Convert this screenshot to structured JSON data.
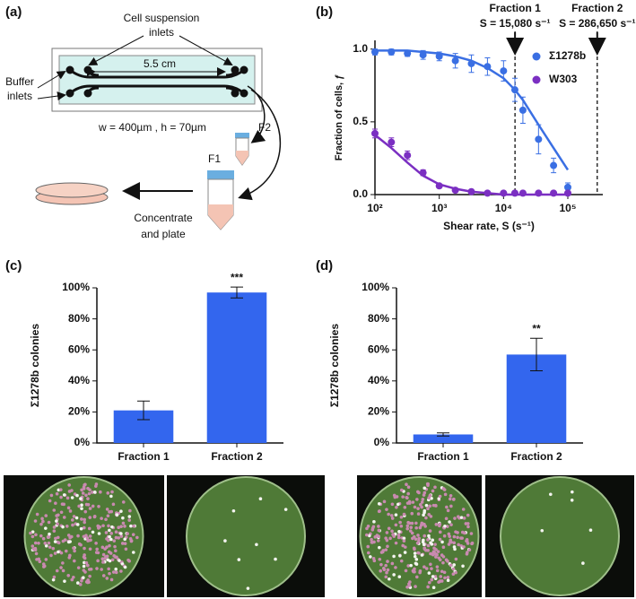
{
  "panel_labels": [
    "(a)",
    "(b)",
    "(c)",
    "(d)"
  ],
  "diagram": {
    "cell_inlets": [
      "Cell suspension",
      "inlets"
    ],
    "buffer_inlets": [
      "Buffer",
      "inlets"
    ],
    "length": "5.5 cm",
    "dimensions": "w = 400µm , h = 70µm",
    "f2": "F2",
    "f1": "F1",
    "plate_step": [
      "Concentrate",
      "and plate"
    ]
  },
  "chart_data": [
    {
      "type": "scatter",
      "xlabel": "Shear rate, S (s⁻¹)",
      "ylabel": "Fraction of cells, ƒ",
      "log_x": true,
      "xlim": [
        100,
        350000
      ],
      "ylim": [
        0,
        1.06
      ],
      "xticks": [
        {
          "value": 100,
          "label": "10²"
        },
        {
          "value": 1000,
          "label": "10³"
        },
        {
          "value": 10000,
          "label": "10⁴"
        },
        {
          "value": 100000,
          "label": "10⁵"
        }
      ],
      "yticks": [
        {
          "value": 0,
          "label": "0.0"
        },
        {
          "value": 0.5,
          "label": "0.5"
        },
        {
          "value": 1,
          "label": "1.0"
        }
      ],
      "x": [
        100,
        180,
        320,
        560,
        1000,
        1780,
        3160,
        5620,
        10000,
        15000,
        20000,
        35000,
        60000,
        100000
      ],
      "series": [
        {
          "name": "Σ1278b",
          "color": "#3a6fe3",
          "values": [
            0.98,
            0.98,
            0.97,
            0.96,
            0.95,
            0.92,
            0.9,
            0.88,
            0.85,
            0.72,
            0.58,
            0.38,
            0.2,
            0.05
          ],
          "errors": [
            0.02,
            0.02,
            0.02,
            0.03,
            0.03,
            0.05,
            0.06,
            0.06,
            0.07,
            0.08,
            0.09,
            0.1,
            0.05,
            0.03
          ],
          "fit": [
            0.99,
            0.99,
            0.99,
            0.98,
            0.97,
            0.95,
            0.92,
            0.87,
            0.8,
            0.72,
            0.65,
            0.48,
            0.32,
            0.17
          ]
        },
        {
          "name": "W303",
          "color": "#7b2fc2",
          "values": [
            0.42,
            0.36,
            0.27,
            0.15,
            0.06,
            0.03,
            0.02,
            0.01,
            0.01,
            0.01,
            0.01,
            0.01,
            0.01,
            0.01
          ],
          "errors": [
            0.03,
            0.03,
            0.03,
            0.02,
            0.01,
            0.01,
            0.01,
            0.01,
            0.01,
            0.01,
            0.01,
            0.01,
            0.01,
            0.01
          ],
          "fit": [
            0.41,
            0.32,
            0.22,
            0.13,
            0.07,
            0.04,
            0.02,
            0.01,
            0,
            0,
            0,
            0,
            0,
            0
          ]
        }
      ],
      "vlines": [
        {
          "label": "Fraction 1",
          "sublabel": "S = 15,080 s⁻¹",
          "value": 15080
        },
        {
          "label": "Fraction 2",
          "sublabel": "S = 286,650 s⁻¹",
          "value": 286650
        }
      ]
    },
    {
      "type": "bar",
      "ylabel": "Σ1278b colonies",
      "categories": [
        "Fraction 1",
        "Fraction 2"
      ],
      "values": [
        21,
        97
      ],
      "errors": [
        6,
        3.5
      ],
      "significance": [
        null,
        "***"
      ],
      "color": "#3366ee",
      "ylim": [
        0,
        100
      ],
      "yticks": [
        {
          "value": 0,
          "label": "0%"
        },
        {
          "value": 20,
          "label": "20%"
        },
        {
          "value": 40,
          "label": "40%"
        },
        {
          "value": 60,
          "label": "60%"
        },
        {
          "value": 80,
          "label": "80%"
        },
        {
          "value": 100,
          "label": "100%"
        }
      ]
    },
    {
      "type": "bar",
      "ylabel": "Σ1278b colonies",
      "categories": [
        "Fraction 1",
        "Fraction 2"
      ],
      "values": [
        5.5,
        57
      ],
      "errors": [
        1,
        10.5
      ],
      "significance": [
        null,
        "**"
      ],
      "color": "#3366ee",
      "ylim": [
        0,
        100
      ],
      "yticks": [
        {
          "value": 0,
          "label": "0%"
        },
        {
          "value": 20,
          "label": "20%"
        },
        {
          "value": 40,
          "label": "40%"
        },
        {
          "value": 60,
          "label": "60%"
        },
        {
          "value": 80,
          "label": "80%"
        },
        {
          "value": 100,
          "label": "100%"
        }
      ]
    }
  ]
}
